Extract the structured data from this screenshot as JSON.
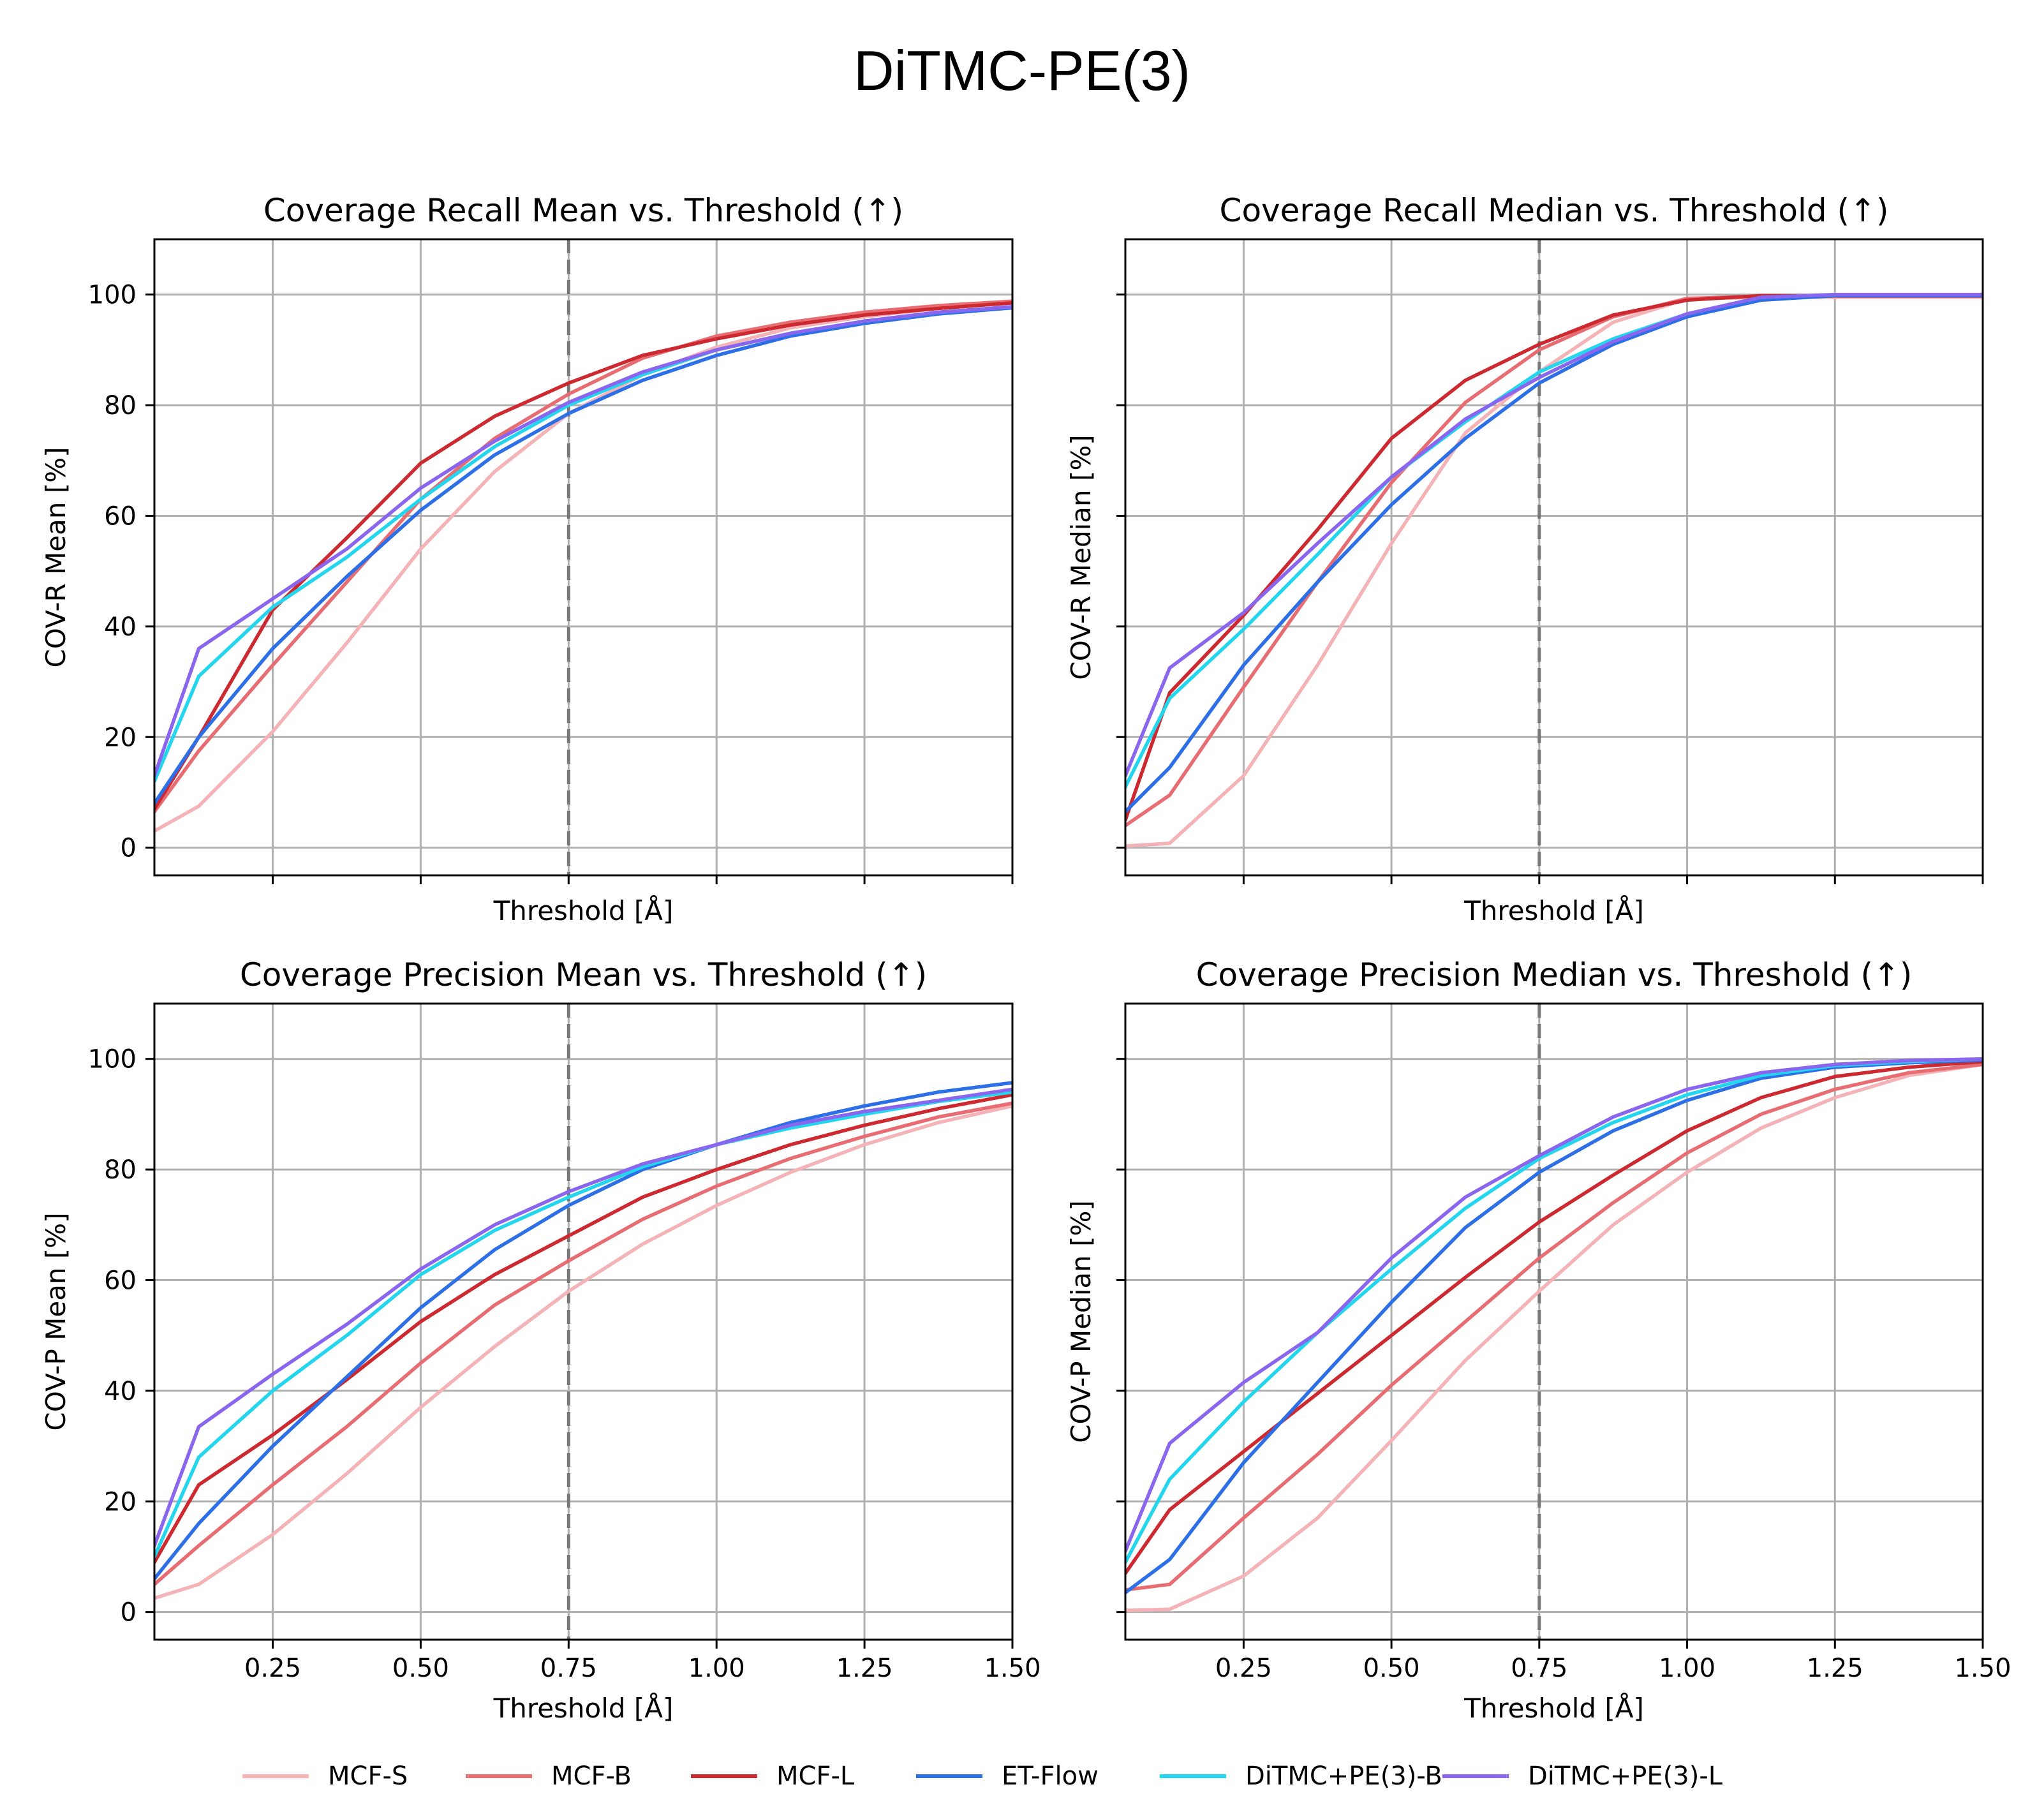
{
  "figure_title": "DiTMC-PE(3)",
  "colors": {
    "MCF-S": "#f4b3b7",
    "MCF-B": "#e86d73",
    "MCF-L": "#cc2a30",
    "ET-Flow": "#2c6fe6",
    "DiTMC+PE(3)-B": "#23d6ee",
    "DiTMC+PE(3)-L": "#8a65ee",
    "reference_line": "#777777",
    "grid": "#b0b0b0"
  },
  "legend": [
    {
      "label": "MCF-S"
    },
    {
      "label": "MCF-B"
    },
    {
      "label": "MCF-L"
    },
    {
      "label": "ET-Flow"
    },
    {
      "label": "DiTMC+PE(3)-B"
    },
    {
      "label": "DiTMC+PE(3)-L"
    }
  ],
  "chart_data": [
    {
      "type": "line",
      "title": "Coverage Recall Mean vs. Threshold (↑)",
      "xlabel": "Threshold [Å]",
      "ylabel": "COV-R Mean [%]",
      "xlim": [
        0.05,
        1.5
      ],
      "ylim": [
        -5,
        110
      ],
      "xticks": [
        0.25,
        0.5,
        0.75,
        1.0,
        1.25,
        1.5
      ],
      "xtick_labels_visible": false,
      "yticks": [
        0,
        20,
        40,
        60,
        80,
        100
      ],
      "ytick_labels": [
        "0",
        "20",
        "40",
        "60",
        "80",
        "100"
      ],
      "ytick_labels_visible": true,
      "grid": true,
      "reference_x": 0.75,
      "x": [
        0.05,
        0.125,
        0.25,
        0.375,
        0.5,
        0.625,
        0.75,
        0.875,
        1.0,
        1.125,
        1.25,
        1.375,
        1.5
      ],
      "series": [
        {
          "name": "MCF-S",
          "values": [
            3.0,
            7.5,
            21,
            37,
            54,
            68,
            78.5,
            85.5,
            90.5,
            94,
            96,
            97.5,
            98.5
          ]
        },
        {
          "name": "MCF-B",
          "values": [
            6.5,
            17.5,
            33,
            48,
            63,
            74,
            82,
            88.5,
            92.5,
            95,
            96.8,
            98,
            98.8
          ]
        },
        {
          "name": "MCF-L",
          "values": [
            7,
            20,
            43,
            56,
            69.5,
            78,
            84,
            89,
            92,
            94.5,
            96.3,
            97.5,
            98.5
          ]
        },
        {
          "name": "ET-Flow",
          "values": [
            8,
            20,
            36,
            49,
            61,
            71,
            78.5,
            84.5,
            89,
            92.5,
            94.8,
            96.5,
            97.6
          ]
        },
        {
          "name": "DiTMC+PE(3)-B",
          "values": [
            12,
            31,
            43.5,
            52.5,
            63,
            72.5,
            80,
            85.5,
            90,
            93,
            95.2,
            96.8,
            97.8
          ]
        },
        {
          "name": "DiTMC+PE(3)-L",
          "values": [
            13,
            36,
            45,
            54,
            65,
            73.5,
            80.5,
            86,
            90,
            93,
            95.2,
            96.8,
            97.8
          ]
        }
      ]
    },
    {
      "type": "line",
      "title": "Coverage Recall Median vs. Threshold (↑)",
      "xlabel": "Threshold [Å]",
      "ylabel": "COV-R Median [%]",
      "xlim": [
        0.05,
        1.5
      ],
      "ylim": [
        -5,
        110
      ],
      "xticks": [
        0.25,
        0.5,
        0.75,
        1.0,
        1.25,
        1.5
      ],
      "xtick_labels_visible": false,
      "yticks": [
        0,
        20,
        40,
        60,
        80,
        100
      ],
      "ytick_labels": [
        "0",
        "20",
        "40",
        "60",
        "80",
        "100"
      ],
      "ytick_labels_visible": false,
      "grid": true,
      "reference_x": 0.75,
      "x": [
        0.05,
        0.125,
        0.25,
        0.375,
        0.5,
        0.625,
        0.75,
        0.875,
        1.0,
        1.125,
        1.25,
        1.375,
        1.5
      ],
      "series": [
        {
          "name": "MCF-S",
          "values": [
            0.3,
            0.8,
            13,
            33,
            55,
            75,
            86,
            95,
            99.2,
            99.5,
            99.5,
            99.5,
            99.5
          ]
        },
        {
          "name": "MCF-B",
          "values": [
            4,
            9.5,
            29,
            48,
            66,
            80.5,
            90,
            96,
            99.3,
            99.7,
            99.7,
            99.7,
            99.7
          ]
        },
        {
          "name": "MCF-L",
          "values": [
            5,
            28,
            42,
            57.5,
            74,
            84.5,
            91,
            96.3,
            99,
            99.8,
            99.8,
            99.8,
            99.8
          ]
        },
        {
          "name": "ET-Flow",
          "values": [
            6.5,
            14.5,
            33,
            48,
            62,
            74,
            84,
            91,
            96,
            99,
            99.8,
            99.8,
            99.8
          ]
        },
        {
          "name": "DiTMC+PE(3)-B",
          "values": [
            11,
            27,
            39.5,
            53,
            67,
            77,
            86,
            92,
            96.5,
            99.5,
            100,
            100,
            100
          ]
        },
        {
          "name": "DiTMC+PE(3)-L",
          "values": [
            13,
            32.5,
            42.5,
            55,
            67,
            77.5,
            85,
            91.5,
            96.5,
            99.5,
            100,
            100,
            100
          ]
        }
      ]
    },
    {
      "type": "line",
      "title": "Coverage Precision Mean vs. Threshold (↑)",
      "xlabel": "Threshold [Å]",
      "ylabel": "COV-P Mean [%]",
      "xlim": [
        0.05,
        1.5
      ],
      "ylim": [
        -5,
        110
      ],
      "xticks": [
        0.25,
        0.5,
        0.75,
        1.0,
        1.25,
        1.5
      ],
      "xtick_labels": [
        "0.25",
        "0.50",
        "0.75",
        "1.00",
        "1.25",
        "1.50"
      ],
      "xtick_labels_visible": true,
      "yticks": [
        0,
        20,
        40,
        60,
        80,
        100
      ],
      "ytick_labels": [
        "0",
        "20",
        "40",
        "60",
        "80",
        "100"
      ],
      "ytick_labels_visible": true,
      "grid": true,
      "reference_x": 0.75,
      "x": [
        0.05,
        0.125,
        0.25,
        0.375,
        0.5,
        0.625,
        0.75,
        0.875,
        1.0,
        1.125,
        1.25,
        1.375,
        1.5
      ],
      "series": [
        {
          "name": "MCF-S",
          "values": [
            2.5,
            5,
            14,
            25,
            37,
            48,
            58,
            66.5,
            73.5,
            79.5,
            84.5,
            88.5,
            91.5
          ]
        },
        {
          "name": "MCF-B",
          "values": [
            5,
            12,
            23,
            33.5,
            45,
            55.5,
            63.5,
            71,
            77,
            82,
            86,
            89.5,
            92
          ]
        },
        {
          "name": "MCF-L",
          "values": [
            9,
            23,
            32,
            42,
            52.5,
            61,
            68,
            75,
            80,
            84.5,
            88,
            91,
            93.5
          ]
        },
        {
          "name": "ET-Flow",
          "values": [
            6,
            16,
            30,
            42.5,
            55,
            65.5,
            73.5,
            80,
            84.5,
            88.5,
            91.5,
            94,
            95.7
          ]
        },
        {
          "name": "DiTMC+PE(3)-B",
          "values": [
            10,
            28,
            40,
            50,
            61,
            69,
            75,
            80.5,
            84.5,
            87.5,
            90,
            92.3,
            94
          ]
        },
        {
          "name": "DiTMC+PE(3)-L",
          "values": [
            12,
            33.5,
            43,
            52,
            62,
            70,
            76,
            81,
            84.5,
            88,
            90.5,
            92.5,
            94.5
          ]
        }
      ]
    },
    {
      "type": "line",
      "title": "Coverage Precision Median vs. Threshold (↑)",
      "xlabel": "Threshold [Å]",
      "ylabel": "COV-P Median [%]",
      "xlim": [
        0.05,
        1.5
      ],
      "ylim": [
        -5,
        110
      ],
      "xticks": [
        0.25,
        0.5,
        0.75,
        1.0,
        1.25,
        1.5
      ],
      "xtick_labels": [
        "0.25",
        "0.50",
        "0.75",
        "1.00",
        "1.25",
        "1.50"
      ],
      "xtick_labels_visible": true,
      "yticks": [
        0,
        20,
        40,
        60,
        80,
        100
      ],
      "ytick_labels": [
        "0",
        "20",
        "40",
        "60",
        "80",
        "100"
      ],
      "ytick_labels_visible": false,
      "grid": true,
      "reference_x": 0.75,
      "x": [
        0.05,
        0.125,
        0.25,
        0.375,
        0.5,
        0.625,
        0.75,
        0.875,
        1.0,
        1.125,
        1.25,
        1.375,
        1.5
      ],
      "series": [
        {
          "name": "MCF-S",
          "values": [
            0.3,
            0.5,
            6.5,
            17,
            31,
            45.5,
            58,
            70,
            79.5,
            87.5,
            93,
            97,
            99
          ]
        },
        {
          "name": "MCF-B",
          "values": [
            4,
            5,
            17,
            28.5,
            41,
            52.5,
            64,
            74,
            83,
            90,
            94.5,
            97.5,
            99
          ]
        },
        {
          "name": "MCF-L",
          "values": [
            7,
            18.5,
            29,
            39.5,
            50,
            60.5,
            70.5,
            79,
            87,
            93,
            96.8,
            98.5,
            99.5
          ]
        },
        {
          "name": "ET-Flow",
          "values": [
            3.5,
            9.5,
            27,
            41.5,
            56,
            69.5,
            79.5,
            87,
            92.5,
            96.5,
            98.5,
            99.3,
            99.8
          ]
        },
        {
          "name": "DiTMC+PE(3)-B",
          "values": [
            9,
            24,
            38,
            50.5,
            62,
            73,
            82,
            88.5,
            93.5,
            97,
            98.8,
            99.5,
            100
          ]
        },
        {
          "name": "DiTMC+PE(3)-L",
          "values": [
            11,
            30.5,
            41.5,
            50.5,
            64,
            75,
            82.5,
            89.5,
            94.5,
            97.5,
            99,
            99.7,
            100
          ]
        }
      ]
    }
  ]
}
